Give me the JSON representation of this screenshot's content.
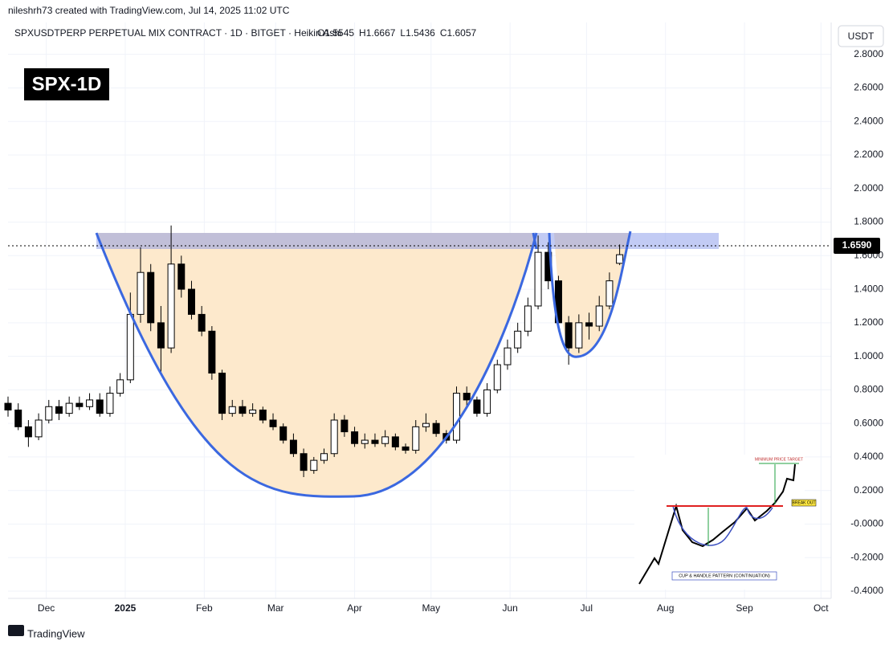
{
  "header": {
    "credit": "nileshrh73 created with TradingView.com, Jul 14, 2025 11:02 UTC",
    "symbol": "SPXUSDTPERP PERPETUAL MIX CONTRACT · 1D · BITGET · Heikin Ashi",
    "ohlc": [
      "O1.5545",
      "H1.6667",
      "L1.5436",
      "C1.6057"
    ],
    "currency": "USDT",
    "badge": "SPX-1D"
  },
  "chart_data": {
    "type": "candlestick",
    "x": [
      -15,
      -11,
      -7,
      -3,
      1,
      5,
      9,
      13,
      17,
      21,
      25,
      29,
      33,
      37,
      41,
      45,
      49,
      53,
      57,
      61,
      65,
      69,
      73,
      77,
      81,
      85,
      89,
      93,
      97,
      101,
      105,
      109,
      113,
      117,
      121,
      125,
      129,
      133,
      137,
      141,
      145,
      149,
      153,
      157,
      161,
      165,
      169,
      173,
      177,
      181,
      185,
      189,
      193,
      197,
      201,
      205,
      209,
      213,
      217,
      221,
      225
    ],
    "open": [
      0.72,
      0.68,
      0.58,
      0.52,
      0.62,
      0.7,
      0.66,
      0.72,
      0.7,
      0.74,
      0.66,
      0.78,
      0.86,
      1.25,
      1.5,
      1.2,
      1.05,
      1.55,
      1.4,
      1.25,
      1.15,
      0.9,
      0.66,
      0.7,
      0.66,
      0.68,
      0.62,
      0.58,
      0.5,
      0.42,
      0.32,
      0.38,
      0.42,
      0.62,
      0.55,
      0.48,
      0.5,
      0.48,
      0.52,
      0.46,
      0.44,
      0.58,
      0.6,
      0.54,
      0.5,
      0.78,
      0.74,
      0.66,
      0.8,
      0.95,
      1.05,
      1.15,
      1.3,
      1.62,
      1.45,
      1.2,
      1.05,
      1.2,
      1.18,
      1.3,
      1.5545
    ],
    "high": [
      0.76,
      0.72,
      0.62,
      0.66,
      0.74,
      0.74,
      0.76,
      0.76,
      0.78,
      0.78,
      0.82,
      0.9,
      1.38,
      1.65,
      1.55,
      1.3,
      1.78,
      1.6,
      1.45,
      1.3,
      1.18,
      0.92,
      0.74,
      0.74,
      0.72,
      0.7,
      0.66,
      0.6,
      0.54,
      0.45,
      0.4,
      0.45,
      0.66,
      0.65,
      0.58,
      0.54,
      0.54,
      0.56,
      0.54,
      0.48,
      0.62,
      0.66,
      0.62,
      0.56,
      0.82,
      0.82,
      0.76,
      0.84,
      0.98,
      1.1,
      1.2,
      1.35,
      1.72,
      1.68,
      1.48,
      1.24,
      1.25,
      1.26,
      1.36,
      1.5,
      1.6667
    ],
    "low": [
      0.64,
      0.56,
      0.46,
      0.5,
      0.6,
      0.62,
      0.64,
      0.68,
      0.68,
      0.64,
      0.64,
      0.76,
      0.84,
      1.2,
      1.15,
      0.9,
      1.02,
      1.35,
      1.22,
      1.12,
      0.86,
      0.62,
      0.64,
      0.64,
      0.64,
      0.6,
      0.56,
      0.48,
      0.4,
      0.28,
      0.3,
      0.36,
      0.4,
      0.52,
      0.46,
      0.45,
      0.46,
      0.46,
      0.44,
      0.42,
      0.42,
      0.55,
      0.52,
      0.48,
      0.48,
      0.7,
      0.64,
      0.64,
      0.78,
      0.92,
      1.02,
      1.12,
      1.28,
      1.4,
      1.15,
      0.95,
      1.02,
      1.1,
      1.15,
      1.28,
      1.5436
    ],
    "close": [
      0.68,
      0.58,
      0.52,
      0.62,
      0.7,
      0.66,
      0.72,
      0.7,
      0.74,
      0.66,
      0.78,
      0.86,
      1.25,
      1.5,
      1.2,
      1.05,
      1.55,
      1.4,
      1.25,
      1.15,
      0.9,
      0.66,
      0.7,
      0.66,
      0.68,
      0.62,
      0.58,
      0.5,
      0.42,
      0.32,
      0.38,
      0.42,
      0.62,
      0.55,
      0.48,
      0.5,
      0.48,
      0.52,
      0.46,
      0.44,
      0.58,
      0.6,
      0.54,
      0.5,
      0.78,
      0.74,
      0.66,
      0.8,
      0.95,
      1.05,
      1.15,
      1.3,
      1.62,
      1.45,
      1.2,
      1.05,
      1.2,
      1.18,
      1.3,
      1.45,
      1.6057
    ],
    "up_color": "#ffffff",
    "down_color": "#000000",
    "border_color": "#000000",
    "xlim": [
      -15,
      308
    ],
    "xticks": [
      {
        "value": 0,
        "label": "Dec"
      },
      {
        "value": 31,
        "label": "2025"
      },
      {
        "value": 62,
        "label": "Feb"
      },
      {
        "value": 90,
        "label": "Mar"
      },
      {
        "value": 121,
        "label": "Apr"
      },
      {
        "value": 151,
        "label": "May"
      },
      {
        "value": 182,
        "label": "Jun"
      },
      {
        "value": 212,
        "label": "Jul"
      },
      {
        "value": 243,
        "label": "Aug"
      },
      {
        "value": 274,
        "label": "Sep"
      },
      {
        "value": 304,
        "label": "Oct"
      }
    ],
    "ylim": [
      -0.443,
      2.99
    ],
    "yticks": [
      {
        "value": 2.8,
        "label": "2.8000"
      },
      {
        "value": 2.6,
        "label": "2.6000"
      },
      {
        "value": 2.4,
        "label": "2.4000"
      },
      {
        "value": 2.2,
        "label": "2.2000"
      },
      {
        "value": 2,
        "label": "2.0000"
      },
      {
        "value": 1.8,
        "label": "1.8000"
      },
      {
        "value": 1.6,
        "label": "1.6000"
      },
      {
        "value": 1.4,
        "label": "1.4000"
      },
      {
        "value": 1.2,
        "label": "1.2000"
      },
      {
        "value": 1,
        "label": "1.0000"
      },
      {
        "value": 0.8,
        "label": "0.8000"
      },
      {
        "value": 0.6,
        "label": "0.6000"
      },
      {
        "value": 0.4,
        "label": "0.4000"
      },
      {
        "value": 0.2,
        "label": "0.2000"
      },
      {
        "value": 0,
        "label": "-0.0000"
      },
      {
        "value": -0.2,
        "label": "-0.2000"
      },
      {
        "value": -0.4,
        "label": "-0.4000"
      }
    ],
    "grid": true,
    "current_price": {
      "value": 1.659,
      "label": "1.6590"
    }
  },
  "inset": {
    "target": "MINIMUM PRICE TARGET",
    "breakout": "BREAK OUT",
    "pattern": "CUP & HANDLE PATTERN (CONTINUATION)"
  },
  "footer": {
    "brand": "TradingView"
  }
}
